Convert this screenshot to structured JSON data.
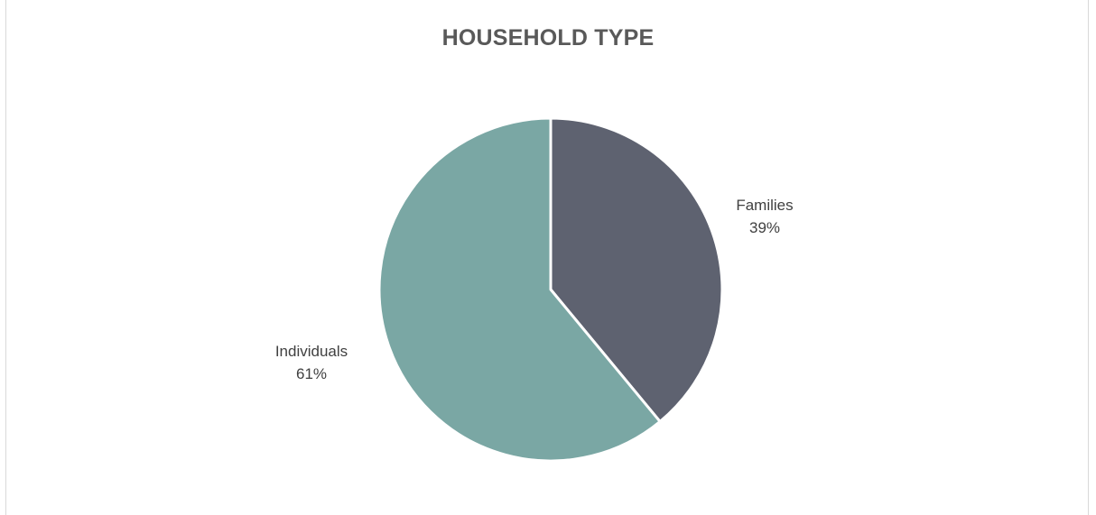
{
  "chart_data": {
    "type": "pie",
    "title": "HOUSEHOLD TYPE",
    "categories": [
      "Families",
      "Individuals"
    ],
    "values": [
      39,
      61
    ],
    "value_labels": [
      "39%",
      "61%"
    ],
    "colors": [
      "#5e6270",
      "#7aa7a4"
    ],
    "legend": "none",
    "start_angle": "12 o'clock",
    "direction": "clockwise"
  }
}
